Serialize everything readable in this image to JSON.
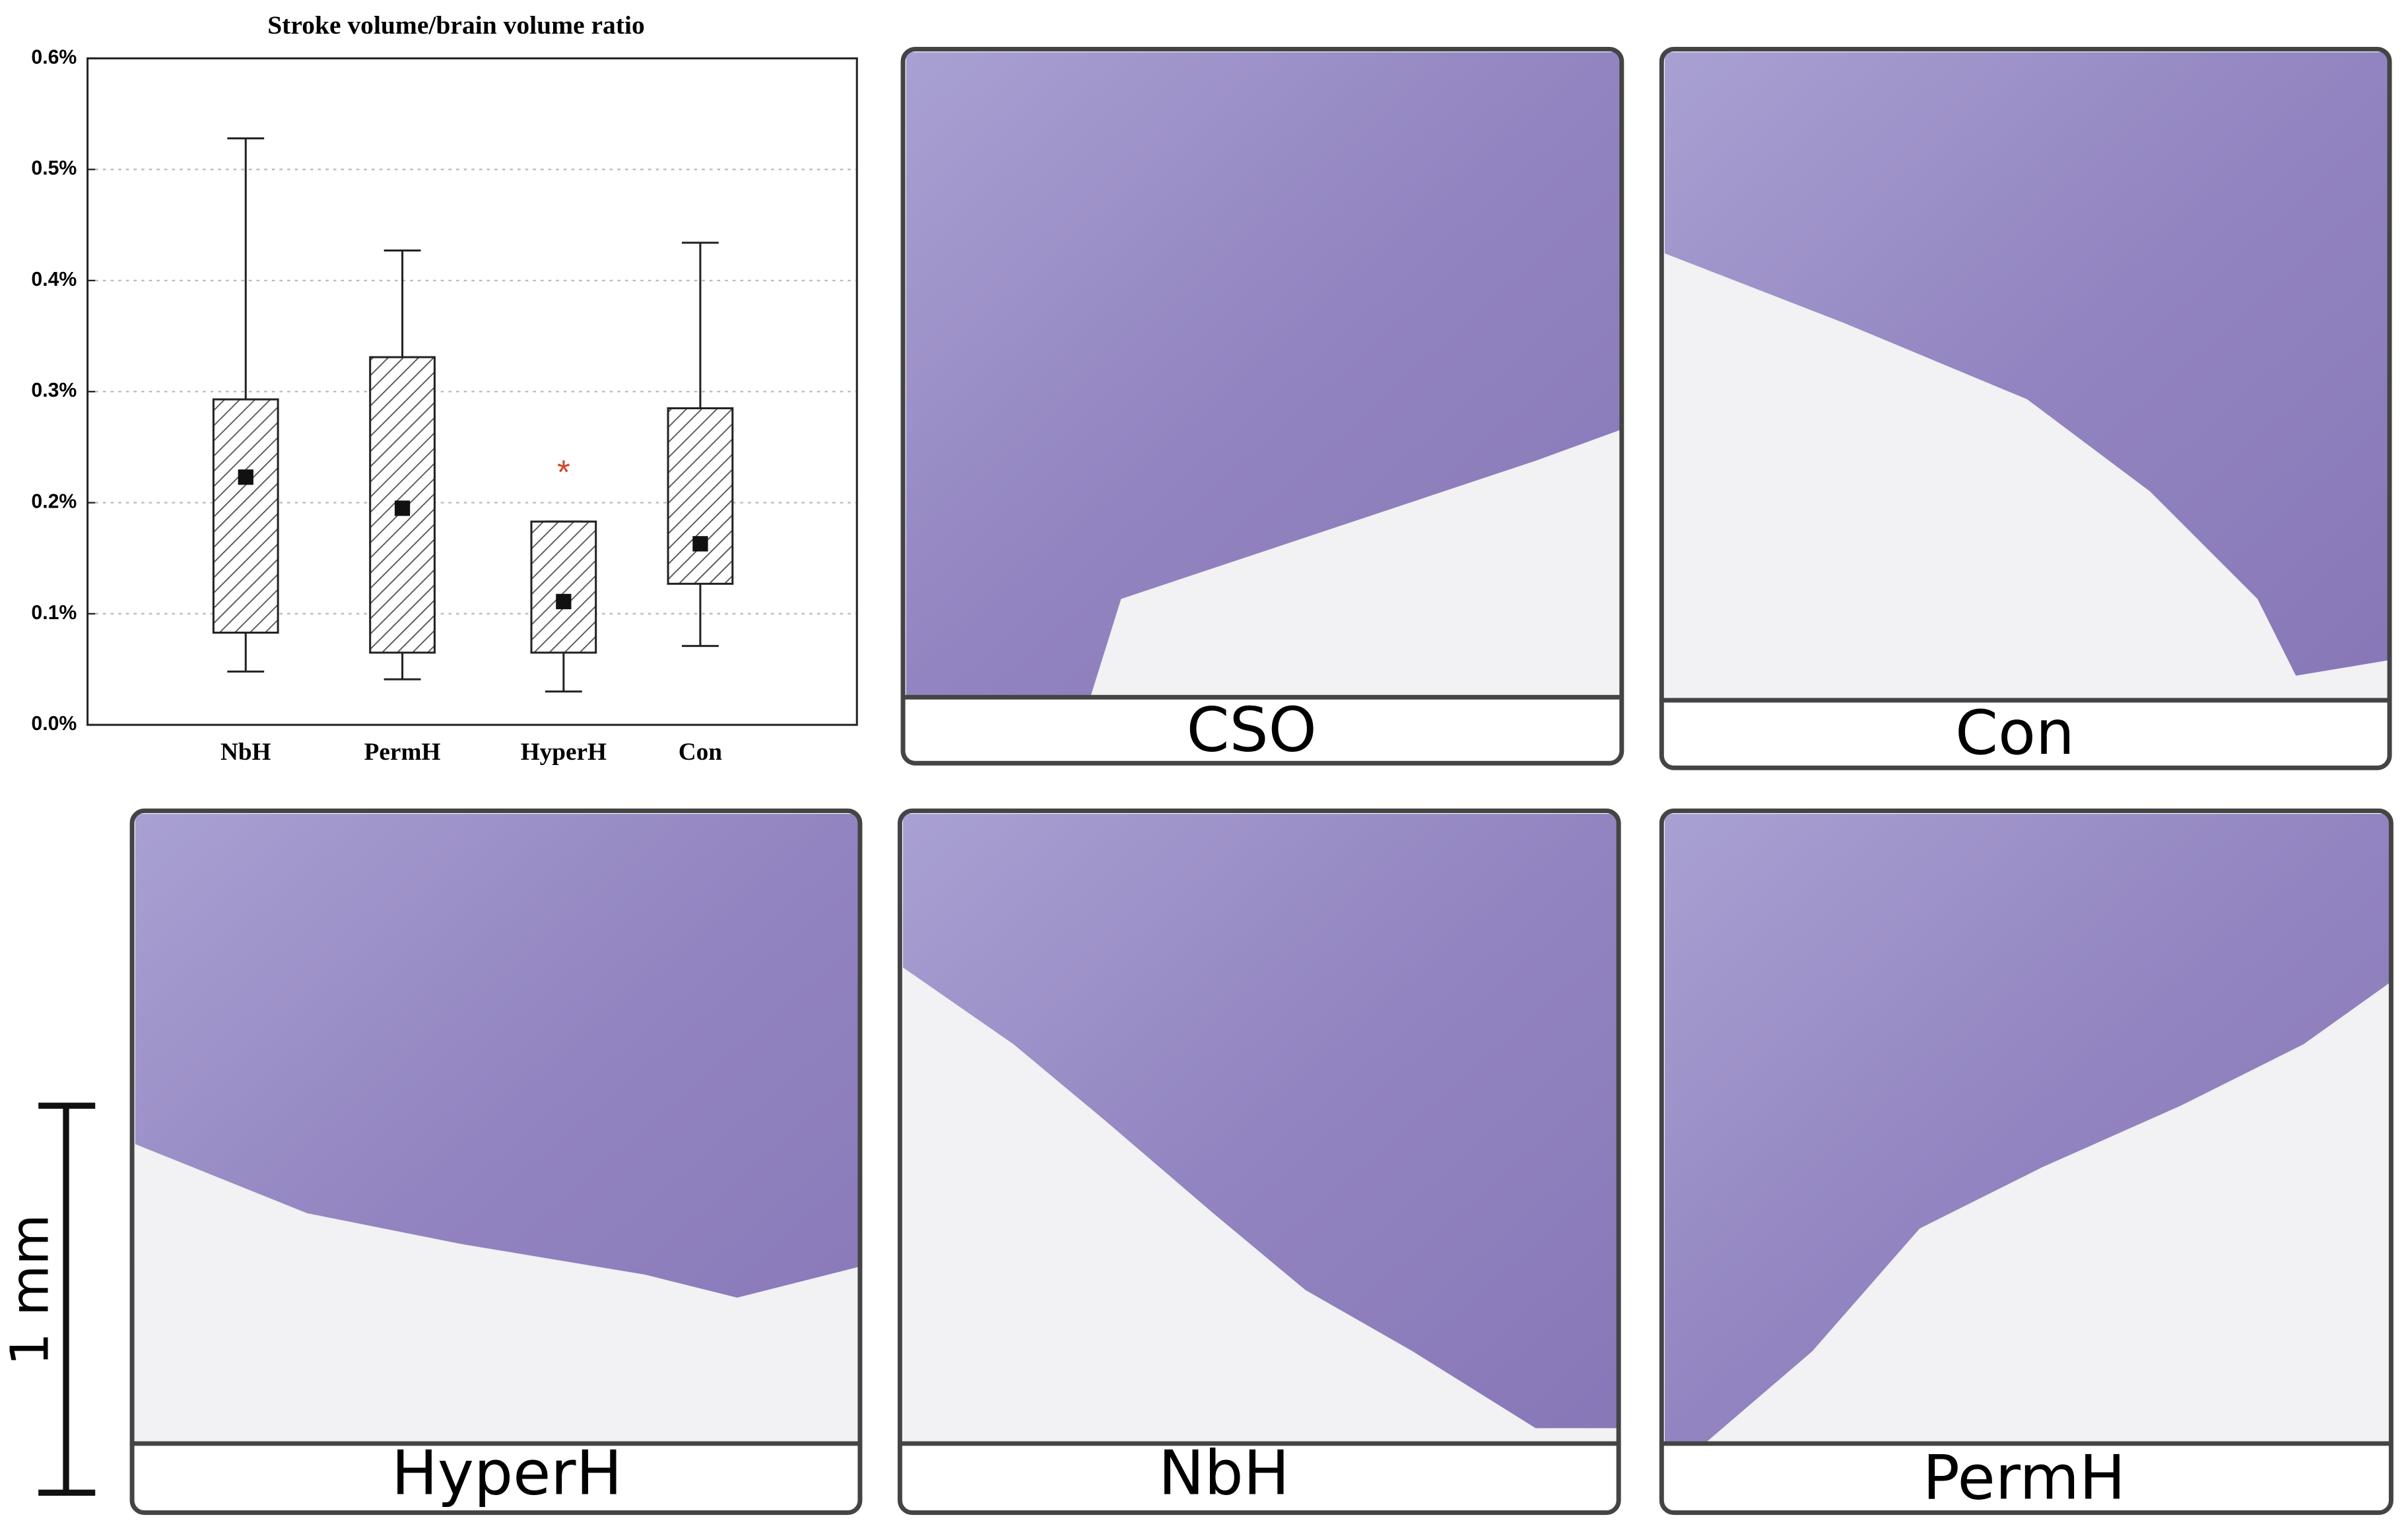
{
  "chart_data": {
    "type": "box",
    "title": "Stroke volume/brain volume ratio",
    "categories": [
      "NbH",
      "PermH",
      "HyperH",
      "Con"
    ],
    "whisker_low": [
      0.048,
      0.041,
      0.03,
      0.071
    ],
    "q1": [
      0.083,
      0.065,
      0.065,
      0.127
    ],
    "center": [
      0.223,
      0.195,
      0.111,
      0.163
    ],
    "q3": [
      0.293,
      0.331,
      0.183,
      0.285
    ],
    "whisker_high": [
      0.528,
      0.427,
      0.183,
      0.434
    ],
    "ylim": [
      0,
      0.6
    ],
    "yticks": [
      {
        "value": 0,
        "label": "0.0%"
      },
      {
        "value": 0.1,
        "label": "0.1%"
      },
      {
        "value": 0.2,
        "label": "0.2%"
      },
      {
        "value": 0.3,
        "label": "0.3%"
      },
      {
        "value": 0.4,
        "label": "0.4%"
      },
      {
        "value": 0.5,
        "label": "0.5%"
      },
      {
        "value": 0.6,
        "label": "0.6%"
      }
    ],
    "grid": true,
    "outlier_marker": "*"
  },
  "panels": [
    "CSO",
    "Con",
    "HyperH",
    "NbH",
    "PermH"
  ],
  "scale_bar": "1 mm"
}
